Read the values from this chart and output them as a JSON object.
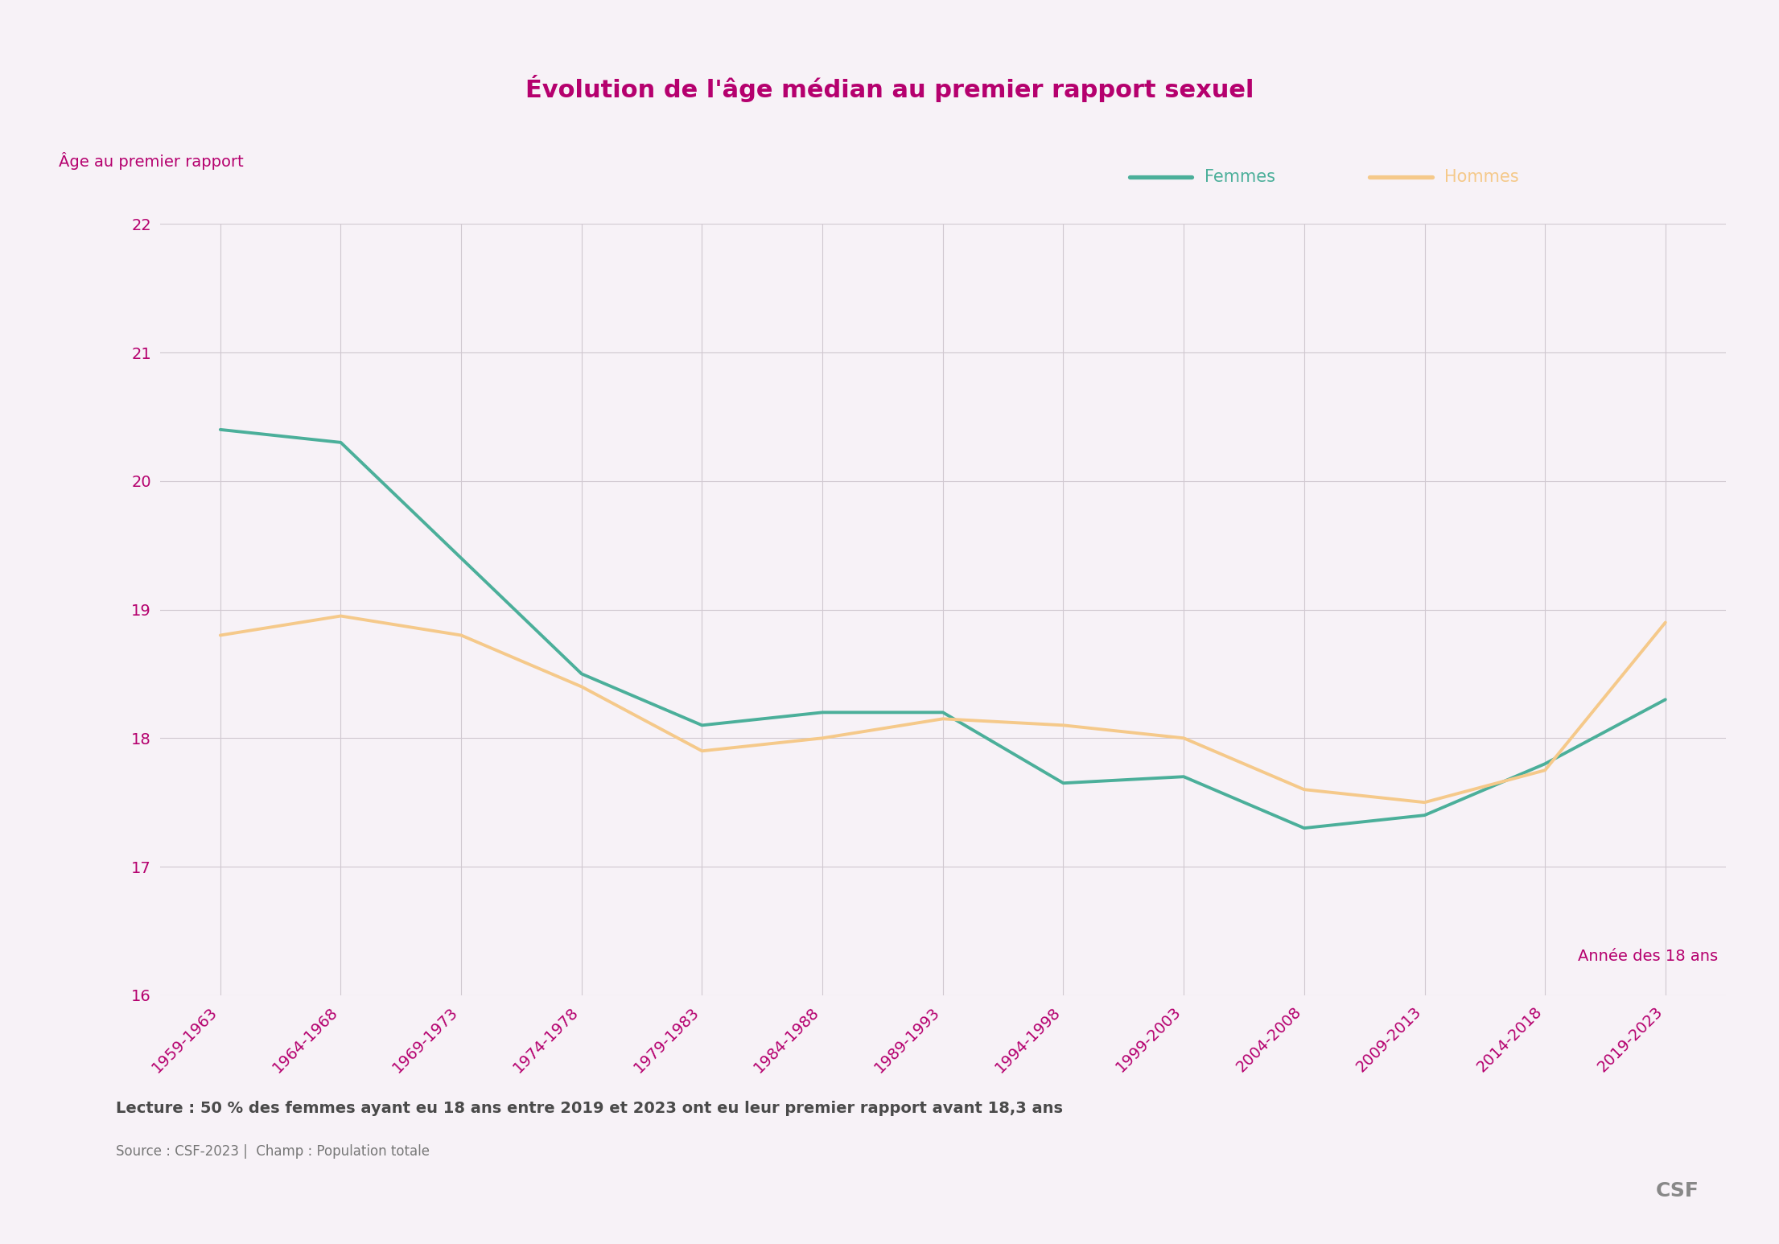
{
  "title": "Évolution de l'âge médian au premier rapport sexuel",
  "ylabel": "Âge au premier rapport",
  "xlabel_annotation": "Année des 18 ans",
  "categories": [
    "1959-1963",
    "1964-1968",
    "1969-1973",
    "1974-1978",
    "1979-1983",
    "1984-1988",
    "1989-1993",
    "1994-1998",
    "1999-2003",
    "2004-2008",
    "2009-2013",
    "2014-2018",
    "2019-2023"
  ],
  "femmes": [
    20.4,
    20.3,
    19.4,
    18.5,
    18.1,
    18.2,
    18.2,
    17.65,
    17.7,
    17.3,
    17.4,
    17.8,
    18.3
  ],
  "hommes": [
    18.8,
    18.95,
    18.8,
    18.4,
    17.9,
    18.0,
    18.15,
    18.1,
    18.0,
    17.6,
    17.5,
    17.75,
    18.9
  ],
  "femmes_color": "#4BAF9A",
  "hommes_color": "#F5C98A",
  "title_color": "#b5006e",
  "ylabel_color": "#b5006e",
  "tick_color": "#b5006e",
  "annotation_color": "#b5006e",
  "legend_femmes": "Femmes",
  "legend_hommes": "Hommes",
  "note_line1": "Lecture : 50 % des femmes ayant eu 18 ans entre 2019 et 2023 ont eu leur premier rapport avant 18,3 ans",
  "note_line2": "Source : CSF-2023 |  Champ : Population totale",
  "csf_label": "CSF",
  "background_color": "#f7f2f7",
  "plot_background": "#f7f2f7",
  "grid_color": "#d0c8d0",
  "ylim": [
    16,
    22
  ],
  "yticks": [
    16,
    17,
    18,
    19,
    20,
    21,
    22
  ],
  "line_width": 2.8,
  "title_fontsize": 22,
  "ylabel_fontsize": 14,
  "tick_fontsize": 14,
  "legend_fontsize": 15,
  "note_fontsize1": 14,
  "note_fontsize2": 12
}
